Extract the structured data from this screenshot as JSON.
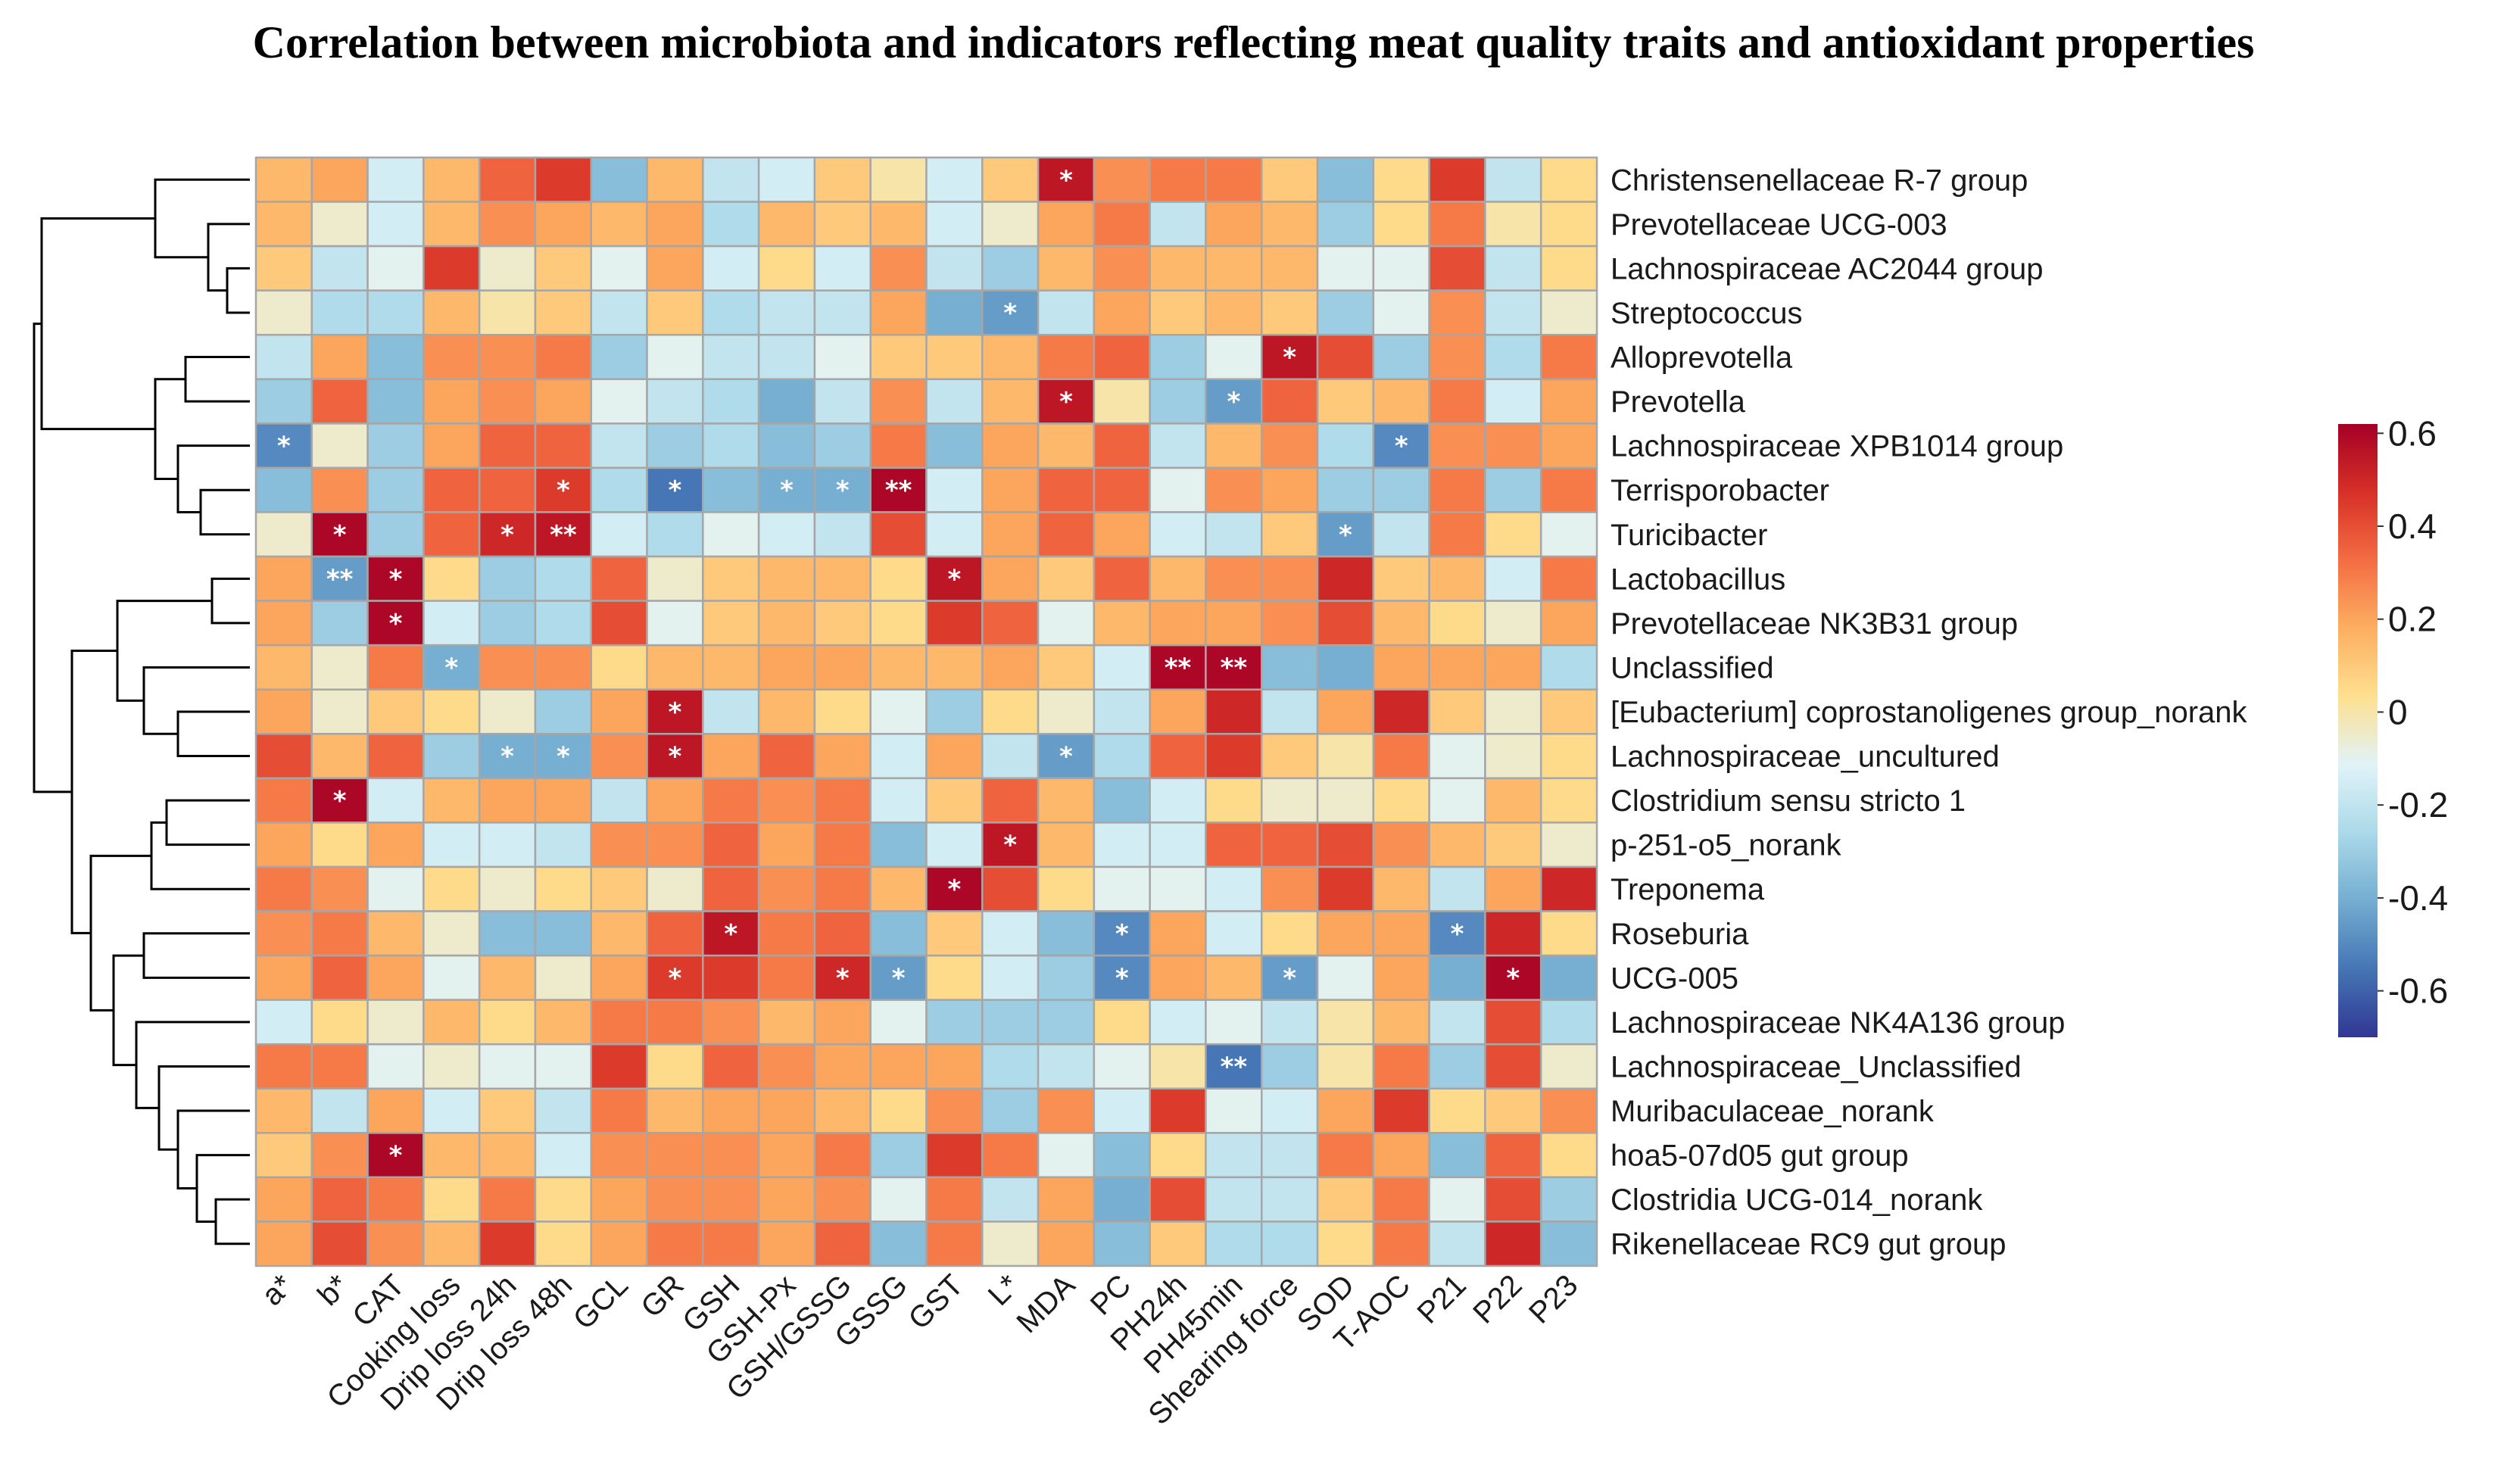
{
  "title": "Correlation between microbiota and indicators reflecting meat quality traits and antioxidant properties",
  "chart_data": {
    "type": "heatmap",
    "title": "Correlation between microbiota and indicators reflecting meat quality traits and antioxidant properties",
    "columns": [
      "a*",
      "b*",
      "CAT",
      "Cooking loss",
      "Drip loss 24h",
      "Drip loss 48h",
      "GCL",
      "GR",
      "GSH",
      "GSH-Px",
      "GSH/GSSG",
      "GSSG",
      "GST",
      "L*",
      "MDA",
      "PC",
      "PH24h",
      "PH45min",
      "Shearing force",
      "SOD",
      "T-AOC",
      "P21",
      "P22",
      "P23"
    ],
    "rows": [
      "Christensenellaceae R-7 group",
      "Prevotellaceae UCG-003",
      "Lachnospiraceae AC2044 group",
      "Streptococcus",
      "Alloprevotella",
      "Prevotella",
      "Lachnospiraceae XPB1014 group",
      "Terrisporobacter",
      "Turicibacter",
      "Lactobacillus",
      "Prevotellaceae NK3B31 group",
      "Unclassified",
      "[Eubacterium] coprostanoligenes group_norank",
      "Lachnospiraceae_uncultured",
      "Clostridium sensu stricto 1",
      "p-251-o5_norank",
      "Treponema",
      "Roseburia",
      "UCG-005",
      "Lachnospiraceae NK4A136 group",
      "Lachnospiraceae_Unclassified",
      "Muribaculaceae_norank",
      "hoa5-07d05 gut group",
      "Clostridia UCG-014_norank",
      "Rikenellaceae RC9 gut group"
    ],
    "values": [
      [
        0.15,
        0.2,
        -0.15,
        0.15,
        0.35,
        0.45,
        -0.35,
        0.15,
        -0.2,
        -0.15,
        0.1,
        0.0,
        -0.15,
        0.1,
        0.55,
        0.25,
        0.3,
        0.3,
        0.1,
        -0.35,
        0.05,
        0.45,
        -0.2,
        0.05
      ],
      [
        0.15,
        -0.05,
        -0.15,
        0.15,
        0.25,
        0.2,
        0.15,
        0.2,
        -0.25,
        0.15,
        0.1,
        0.15,
        -0.15,
        -0.05,
        0.2,
        0.3,
        -0.2,
        0.2,
        0.15,
        -0.3,
        0.05,
        0.3,
        0.0,
        0.05
      ],
      [
        0.1,
        -0.2,
        -0.1,
        0.45,
        -0.05,
        0.1,
        -0.1,
        0.2,
        -0.15,
        0.05,
        -0.15,
        0.25,
        -0.2,
        -0.3,
        0.15,
        0.25,
        0.15,
        0.15,
        0.15,
        -0.1,
        -0.1,
        0.4,
        -0.2,
        0.05
      ],
      [
        -0.05,
        -0.25,
        -0.25,
        0.15,
        0.0,
        0.1,
        -0.2,
        0.1,
        -0.25,
        -0.2,
        -0.2,
        0.2,
        -0.4,
        -0.45,
        -0.2,
        0.2,
        0.1,
        0.15,
        0.1,
        -0.3,
        -0.1,
        0.25,
        -0.2,
        -0.05
      ],
      [
        -0.2,
        0.2,
        -0.35,
        0.25,
        0.25,
        0.3,
        -0.3,
        -0.1,
        -0.2,
        -0.2,
        -0.1,
        0.1,
        0.1,
        0.15,
        0.3,
        0.35,
        -0.3,
        -0.1,
        0.55,
        0.4,
        -0.3,
        0.25,
        -0.25,
        0.3
      ],
      [
        -0.3,
        0.35,
        -0.35,
        0.2,
        0.25,
        0.2,
        -0.1,
        -0.2,
        -0.25,
        -0.4,
        -0.2,
        0.25,
        -0.2,
        0.15,
        0.55,
        0.0,
        -0.3,
        -0.45,
        0.35,
        0.1,
        0.15,
        0.3,
        -0.15,
        0.2
      ],
      [
        -0.5,
        -0.05,
        -0.3,
        0.2,
        0.35,
        0.35,
        -0.2,
        -0.3,
        -0.25,
        -0.35,
        -0.3,
        0.3,
        -0.35,
        0.2,
        0.15,
        0.35,
        -0.2,
        0.15,
        0.25,
        -0.25,
        -0.5,
        0.25,
        0.25,
        0.2
      ],
      [
        -0.35,
        0.25,
        -0.3,
        0.35,
        0.35,
        0.45,
        -0.25,
        -0.55,
        -0.35,
        -0.4,
        -0.4,
        0.6,
        -0.15,
        0.2,
        0.35,
        0.35,
        -0.1,
        0.25,
        0.2,
        -0.3,
        -0.3,
        0.3,
        -0.3,
        0.3
      ],
      [
        -0.05,
        0.6,
        -0.3,
        0.35,
        0.5,
        0.55,
        -0.15,
        -0.25,
        -0.1,
        -0.15,
        -0.2,
        0.4,
        -0.15,
        0.2,
        0.35,
        0.2,
        -0.15,
        -0.2,
        0.1,
        -0.45,
        -0.2,
        0.3,
        0.05,
        -0.1
      ],
      [
        0.2,
        -0.45,
        0.6,
        0.05,
        -0.3,
        -0.25,
        0.35,
        -0.05,
        0.1,
        0.15,
        0.15,
        0.05,
        0.55,
        0.2,
        0.1,
        0.35,
        0.15,
        0.25,
        0.25,
        0.5,
        0.1,
        0.15,
        -0.15,
        0.3
      ],
      [
        0.2,
        -0.3,
        0.6,
        -0.15,
        -0.3,
        -0.25,
        0.4,
        -0.1,
        0.1,
        0.15,
        0.1,
        0.05,
        0.45,
        0.35,
        -0.1,
        0.15,
        0.2,
        0.2,
        0.25,
        0.4,
        0.15,
        0.05,
        -0.05,
        0.2
      ],
      [
        0.15,
        -0.05,
        0.3,
        -0.4,
        0.25,
        0.25,
        0.05,
        0.15,
        0.15,
        0.2,
        0.2,
        0.15,
        0.15,
        0.2,
        0.1,
        -0.15,
        0.6,
        0.6,
        -0.35,
        -0.4,
        0.2,
        0.2,
        0.2,
        -0.25
      ],
      [
        0.2,
        -0.05,
        0.1,
        0.05,
        -0.05,
        -0.3,
        0.2,
        0.55,
        -0.2,
        0.15,
        0.05,
        -0.1,
        -0.3,
        0.05,
        -0.05,
        -0.2,
        0.2,
        0.5,
        -0.2,
        0.2,
        0.5,
        0.1,
        -0.05,
        0.1
      ],
      [
        0.4,
        0.15,
        0.35,
        -0.3,
        -0.4,
        -0.4,
        0.25,
        0.55,
        0.2,
        0.35,
        0.2,
        -0.15,
        0.2,
        -0.2,
        -0.45,
        -0.25,
        0.35,
        0.45,
        0.1,
        0.0,
        0.3,
        -0.1,
        -0.05,
        0.05
      ],
      [
        0.3,
        0.6,
        -0.15,
        0.15,
        0.2,
        0.2,
        -0.2,
        0.2,
        0.3,
        0.25,
        0.3,
        -0.15,
        0.1,
        0.35,
        0.15,
        -0.35,
        -0.15,
        0.05,
        -0.05,
        -0.05,
        0.05,
        -0.1,
        0.15,
        0.05
      ],
      [
        0.2,
        0.05,
        0.2,
        -0.15,
        -0.15,
        -0.2,
        0.25,
        0.25,
        0.35,
        0.2,
        0.3,
        -0.35,
        -0.15,
        0.55,
        0.15,
        -0.15,
        -0.15,
        0.35,
        0.35,
        0.4,
        0.25,
        0.15,
        0.1,
        -0.05
      ],
      [
        0.3,
        0.25,
        -0.1,
        0.05,
        -0.05,
        0.05,
        0.1,
        -0.05,
        0.35,
        0.25,
        0.3,
        0.15,
        0.6,
        0.4,
        0.05,
        -0.1,
        -0.1,
        -0.15,
        0.25,
        0.45,
        0.15,
        -0.2,
        0.2,
        0.5
      ],
      [
        0.25,
        0.3,
        0.15,
        -0.05,
        -0.35,
        -0.35,
        0.15,
        0.35,
        0.55,
        0.3,
        0.35,
        -0.35,
        0.1,
        -0.15,
        -0.35,
        -0.5,
        0.2,
        -0.15,
        0.05,
        0.2,
        0.2,
        -0.5,
        0.5,
        0.05
      ],
      [
        0.2,
        0.35,
        0.2,
        -0.1,
        0.15,
        -0.05,
        0.2,
        0.45,
        0.45,
        0.3,
        0.5,
        -0.45,
        0.05,
        -0.15,
        -0.3,
        -0.5,
        0.2,
        0.15,
        -0.45,
        -0.1,
        0.2,
        -0.4,
        0.6,
        -0.4
      ],
      [
        -0.15,
        0.05,
        -0.05,
        0.15,
        0.05,
        0.15,
        0.3,
        0.3,
        0.25,
        0.15,
        0.2,
        -0.1,
        -0.3,
        -0.3,
        -0.3,
        0.05,
        -0.15,
        -0.1,
        -0.2,
        0.0,
        0.15,
        -0.2,
        0.4,
        -0.25
      ],
      [
        0.3,
        0.3,
        -0.1,
        -0.05,
        -0.1,
        -0.1,
        0.45,
        0.05,
        0.35,
        0.25,
        0.2,
        0.2,
        0.2,
        -0.25,
        -0.2,
        -0.1,
        0.0,
        -0.55,
        -0.3,
        0.0,
        0.3,
        -0.3,
        0.4,
        -0.05
      ],
      [
        0.15,
        -0.2,
        0.2,
        -0.15,
        0.1,
        -0.2,
        0.3,
        0.15,
        0.2,
        0.2,
        0.15,
        0.05,
        0.25,
        -0.3,
        0.25,
        -0.15,
        0.45,
        -0.1,
        -0.15,
        0.2,
        0.45,
        0.05,
        0.1,
        0.25
      ],
      [
        0.1,
        0.25,
        0.6,
        0.15,
        0.15,
        -0.15,
        0.25,
        0.25,
        0.25,
        0.2,
        0.3,
        -0.3,
        0.45,
        0.3,
        -0.1,
        -0.35,
        0.05,
        -0.2,
        -0.2,
        0.3,
        0.2,
        -0.35,
        0.35,
        0.05
      ],
      [
        0.2,
        0.35,
        0.3,
        0.05,
        0.3,
        0.05,
        0.2,
        0.25,
        0.25,
        0.2,
        0.25,
        -0.1,
        0.3,
        -0.2,
        0.2,
        -0.4,
        0.4,
        -0.2,
        -0.2,
        0.1,
        0.3,
        -0.1,
        0.4,
        -0.3
      ],
      [
        0.2,
        0.4,
        0.25,
        0.15,
        0.45,
        0.05,
        0.2,
        0.3,
        0.3,
        0.2,
        0.35,
        -0.35,
        0.3,
        -0.05,
        0.2,
        -0.35,
        0.1,
        -0.25,
        -0.25,
        0.05,
        0.3,
        -0.2,
        0.5,
        -0.35
      ]
    ],
    "significance": [
      [
        "",
        "",
        "",
        "",
        "",
        "",
        "",
        "",
        "",
        "",
        "",
        "",
        "",
        "",
        "*",
        "",
        "",
        "",
        "",
        "",
        "",
        "",
        "",
        ""
      ],
      [
        "",
        "",
        "",
        "",
        "",
        "",
        "",
        "",
        "",
        "",
        "",
        "",
        "",
        "",
        "",
        "",
        "",
        "",
        "",
        "",
        "",
        "",
        "",
        ""
      ],
      [
        "",
        "",
        "",
        "",
        "",
        "",
        "",
        "",
        "",
        "",
        "",
        "",
        "",
        "",
        "",
        "",
        "",
        "",
        "",
        "",
        "",
        "",
        "",
        ""
      ],
      [
        "",
        "",
        "",
        "",
        "",
        "",
        "",
        "",
        "",
        "",
        "",
        "",
        "",
        "*",
        "",
        "",
        "",
        "",
        "",
        "",
        "",
        "",
        "",
        ""
      ],
      [
        "",
        "",
        "",
        "",
        "",
        "",
        "",
        "",
        "",
        "",
        "",
        "",
        "",
        "",
        "",
        "",
        "",
        "",
        "*",
        "",
        "",
        "",
        "",
        ""
      ],
      [
        "",
        "",
        "",
        "",
        "",
        "",
        "",
        "",
        "",
        "",
        "",
        "",
        "",
        "",
        "*",
        "",
        "",
        "*",
        "",
        "",
        "",
        "",
        "",
        ""
      ],
      [
        "*",
        "",
        "",
        "",
        "",
        "",
        "",
        "",
        "",
        "",
        "",
        "",
        "",
        "",
        "",
        "",
        "",
        "",
        "",
        "",
        "*",
        "",
        "",
        ""
      ],
      [
        "",
        "",
        "",
        "",
        "",
        "*",
        "",
        "*",
        "",
        "*",
        "*",
        "**",
        "",
        "",
        "",
        "",
        "",
        "",
        "",
        "",
        "",
        "",
        "",
        ""
      ],
      [
        "",
        "*",
        "",
        "",
        "*",
        "**",
        "",
        "",
        "",
        "",
        "",
        "",
        "",
        "",
        "",
        "",
        "",
        "",
        "",
        "*",
        "",
        "",
        "",
        ""
      ],
      [
        "",
        "**",
        "*",
        "",
        "",
        "",
        "",
        "",
        "",
        "",
        "",
        "",
        "*",
        "",
        "",
        "",
        "",
        "",
        "",
        "",
        "",
        "",
        "",
        ""
      ],
      [
        "",
        "",
        "*",
        "",
        "",
        "",
        "",
        "",
        "",
        "",
        "",
        "",
        "",
        "",
        "",
        "",
        "",
        "",
        "",
        "",
        "",
        "",
        "",
        ""
      ],
      [
        "",
        "",
        "",
        "*",
        "",
        "",
        "",
        "",
        "",
        "",
        "",
        "",
        "",
        "",
        "",
        "",
        "**",
        "**",
        "",
        "",
        "",
        "",
        "",
        ""
      ],
      [
        "",
        "",
        "",
        "",
        "",
        "",
        "",
        "*",
        "",
        "",
        "",
        "",
        "",
        "",
        "",
        "",
        "",
        "",
        "",
        "",
        "",
        "",
        "",
        ""
      ],
      [
        "",
        "",
        "",
        "",
        "*",
        "*",
        "",
        "*",
        "",
        "",
        "",
        "",
        "",
        "",
        "*",
        "",
        "",
        "",
        "",
        "",
        "",
        "",
        "",
        ""
      ],
      [
        "",
        "*",
        "",
        "",
        "",
        "",
        "",
        "",
        "",
        "",
        "",
        "",
        "",
        "",
        "",
        "",
        "",
        "",
        "",
        "",
        "",
        "",
        "",
        ""
      ],
      [
        "",
        "",
        "",
        "",
        "",
        "",
        "",
        "",
        "",
        "",
        "",
        "",
        "",
        "*",
        "",
        "",
        "",
        "",
        "",
        "",
        "",
        "",
        "",
        ""
      ],
      [
        "",
        "",
        "",
        "",
        "",
        "",
        "",
        "",
        "",
        "",
        "",
        "",
        "*",
        "",
        "",
        "",
        "",
        "",
        "",
        "",
        "",
        "",
        "",
        ""
      ],
      [
        "",
        "",
        "",
        "",
        "",
        "",
        "",
        "",
        "*",
        "",
        "",
        "",
        "",
        "",
        "",
        "*",
        "",
        "",
        "",
        "",
        "",
        "*",
        "",
        ""
      ],
      [
        "",
        "",
        "",
        "",
        "",
        "",
        "",
        "*",
        "",
        "",
        "*",
        "*",
        "",
        "",
        "",
        "*",
        "",
        "",
        "*",
        "",
        "",
        "",
        "*",
        ""
      ],
      [
        "",
        "",
        "",
        "",
        "",
        "",
        "",
        "",
        "",
        "",
        "",
        "",
        "",
        "",
        "",
        "",
        "",
        "",
        "",
        "",
        "",
        "",
        "",
        ""
      ],
      [
        "",
        "",
        "",
        "",
        "",
        "",
        "",
        "",
        "",
        "",
        "",
        "",
        "",
        "",
        "",
        "",
        "",
        "**",
        "",
        "",
        "",
        "",
        "",
        ""
      ],
      [
        "",
        "",
        "",
        "",
        "",
        "",
        "",
        "",
        "",
        "",
        "",
        "",
        "",
        "",
        "",
        "",
        "",
        "",
        "",
        "",
        "",
        "",
        "",
        ""
      ],
      [
        "",
        "",
        "*",
        "",
        "",
        "",
        "",
        "",
        "",
        "",
        "",
        "",
        "",
        "",
        "",
        "",
        "",
        "",
        "",
        "",
        "",
        "",
        "",
        ""
      ],
      [
        "",
        "",
        "",
        "",
        "",
        "",
        "",
        "",
        "",
        "",
        "",
        "",
        "",
        "",
        "",
        "",
        "",
        "",
        "",
        "",
        "",
        "",
        "",
        ""
      ],
      [
        "",
        "",
        "",
        "",
        "",
        "",
        "",
        "",
        "",
        "",
        "",
        "",
        "",
        "",
        "",
        "",
        "",
        "",
        "",
        "",
        "",
        "",
        "",
        ""
      ]
    ],
    "legend": {
      "range": [
        -0.7,
        0.62
      ],
      "ticks": [
        0.6,
        0.4,
        0.2,
        0,
        -0.2,
        -0.4,
        -0.6
      ]
    },
    "colormap": [
      "#313695",
      "#4575b4",
      "#74add1",
      "#abd9e9",
      "#e0f3f8",
      "#fee090",
      "#fdae61",
      "#f46d43",
      "#d73027",
      "#a50026"
    ],
    "dendrogram": "row clustering tree on left side"
  }
}
